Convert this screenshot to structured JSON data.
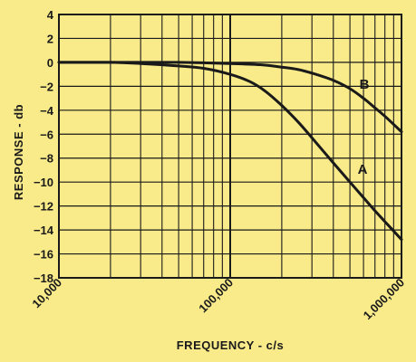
{
  "chart_data": {
    "type": "line",
    "xscale": "log",
    "xlabel": "FREQUENCY - c/s",
    "ylabel": "RESPONSE - db",
    "xlim": [
      10000,
      1000000
    ],
    "ylim": [
      -18,
      4
    ],
    "xticks": [
      10000,
      100000,
      1000000
    ],
    "xtick_labels": [
      "10,000",
      "100,000",
      "1,000,000"
    ],
    "yticks": [
      4,
      2,
      0,
      -2,
      -4,
      -6,
      -8,
      -10,
      -12,
      -14,
      -16,
      -18
    ],
    "ytick_labels": [
      "4",
      "2",
      "0",
      "−2",
      "−4",
      "−6",
      "−8",
      "−10",
      "−12",
      "−14",
      "−16",
      "−18"
    ],
    "grid": true,
    "series": [
      {
        "name": "A",
        "x": [
          10000,
          20000,
          30000,
          50000,
          70000,
          100000,
          130000,
          160000,
          200000,
          250000,
          300000,
          400000,
          500000,
          600000,
          700000,
          800000,
          1000000
        ],
        "y": [
          0,
          0,
          -0.1,
          -0.3,
          -0.5,
          -1.0,
          -1.6,
          -2.4,
          -3.6,
          -5.0,
          -6.3,
          -8.4,
          -10.0,
          -11.3,
          -12.4,
          -13.3,
          -14.8
        ]
      },
      {
        "name": "B",
        "x": [
          10000,
          30000,
          50000,
          100000,
          150000,
          200000,
          250000,
          300000,
          400000,
          500000,
          600000,
          700000,
          800000,
          1000000
        ],
        "y": [
          0,
          0,
          0,
          -0.1,
          -0.2,
          -0.4,
          -0.6,
          -0.9,
          -1.5,
          -2.2,
          -3.0,
          -3.8,
          -4.5,
          -5.8
        ]
      }
    ]
  }
}
